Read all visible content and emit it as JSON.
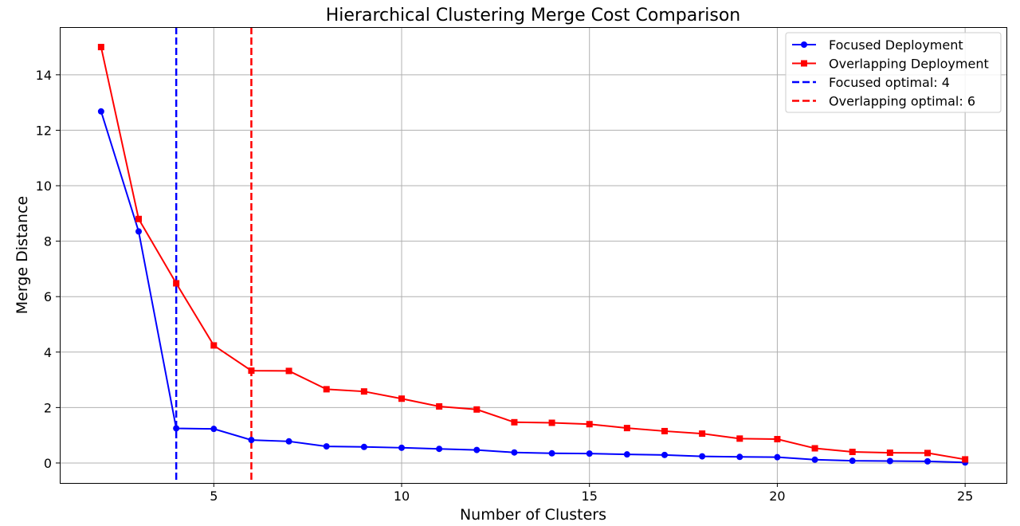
{
  "chart_data": {
    "type": "line",
    "title": "Hierarchical Clustering Merge Cost Comparison",
    "xlabel": "Number of Clusters",
    "ylabel": "Merge Distance",
    "x": [
      2,
      3,
      4,
      5,
      6,
      7,
      8,
      9,
      10,
      11,
      12,
      13,
      14,
      15,
      16,
      17,
      18,
      19,
      20,
      21,
      22,
      23,
      24,
      25
    ],
    "xlim": [
      0.9,
      26.1
    ],
    "ylim": [
      -0.72,
      15.72
    ],
    "xticks": [
      5,
      10,
      15,
      20,
      25
    ],
    "yticks": [
      0,
      2,
      4,
      6,
      8,
      10,
      12,
      14
    ],
    "grid": true,
    "legend_position": "top-right",
    "series": [
      {
        "name": "Focused Deployment",
        "color": "#0000ff",
        "marker": "circle",
        "values": [
          12.68,
          8.35,
          1.25,
          1.23,
          0.83,
          0.78,
          0.6,
          0.58,
          0.55,
          0.51,
          0.47,
          0.38,
          0.35,
          0.34,
          0.31,
          0.29,
          0.24,
          0.22,
          0.21,
          0.12,
          0.08,
          0.07,
          0.06,
          0.02
        ]
      },
      {
        "name": "Overlapping Deployment",
        "color": "#ff0000",
        "marker": "square",
        "values": [
          15.0,
          8.8,
          6.48,
          4.24,
          3.33,
          3.32,
          2.66,
          2.58,
          2.32,
          2.04,
          1.93,
          1.47,
          1.45,
          1.4,
          1.26,
          1.15,
          1.06,
          0.88,
          0.86,
          0.53,
          0.4,
          0.37,
          0.36,
          0.13
        ]
      }
    ],
    "vlines": [
      {
        "name": "Focused optimal: 4",
        "x": 4,
        "color": "#0000ff",
        "style": "dashed"
      },
      {
        "name": "Overlapping optimal: 6",
        "x": 6,
        "color": "#ff0000",
        "style": "dashed"
      }
    ]
  }
}
